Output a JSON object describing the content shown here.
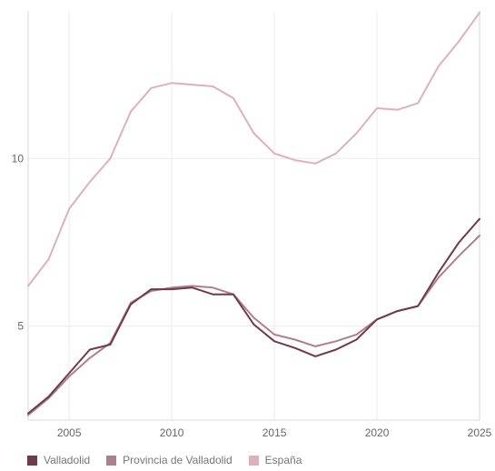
{
  "chart_data": {
    "type": "line",
    "title": "",
    "xlabel": "",
    "ylabel": "",
    "xlim": [
      2003,
      2025
    ],
    "ylim": [
      2.2,
      14.4
    ],
    "x_ticks": [
      2005,
      2010,
      2015,
      2020,
      2025
    ],
    "x_tick_labels": [
      "2005",
      "2010",
      "2015",
      "2020",
      "2025"
    ],
    "y_ticks": [
      5,
      10
    ],
    "y_tick_labels": [
      "5",
      "10"
    ],
    "grid": true,
    "legend_position": "bottom-left",
    "x": [
      2003,
      2004,
      2005,
      2006,
      2007,
      2008,
      2009,
      2010,
      2011,
      2012,
      2013,
      2014,
      2015,
      2016,
      2017,
      2018,
      2019,
      2020,
      2021,
      2022,
      2023,
      2024,
      2025
    ],
    "series": [
      {
        "name": "Valladolid",
        "color": "#6e3a4c",
        "values": [
          2.4,
          2.9,
          3.6,
          4.3,
          4.45,
          5.65,
          6.1,
          6.1,
          6.15,
          5.95,
          5.95,
          5.05,
          4.55,
          4.35,
          4.1,
          4.3,
          4.6,
          5.2,
          5.45,
          5.6,
          6.6,
          7.5,
          8.2
        ]
      },
      {
        "name": "Provincia de Valladolid",
        "color": "#b07f8f",
        "values": [
          2.35,
          2.85,
          3.5,
          4.05,
          4.5,
          5.7,
          6.05,
          6.15,
          6.2,
          6.15,
          5.95,
          5.25,
          4.75,
          4.6,
          4.4,
          4.55,
          4.75,
          5.2,
          5.45,
          5.6,
          6.45,
          7.1,
          7.7
        ]
      },
      {
        "name": "España",
        "color": "#dcb1bd",
        "values": [
          6.2,
          7.0,
          8.5,
          9.3,
          10.0,
          11.4,
          12.1,
          12.25,
          12.2,
          12.15,
          11.8,
          10.75,
          10.15,
          9.95,
          9.85,
          10.15,
          10.75,
          11.5,
          11.45,
          11.65,
          12.75,
          13.5,
          14.35
        ]
      }
    ]
  }
}
